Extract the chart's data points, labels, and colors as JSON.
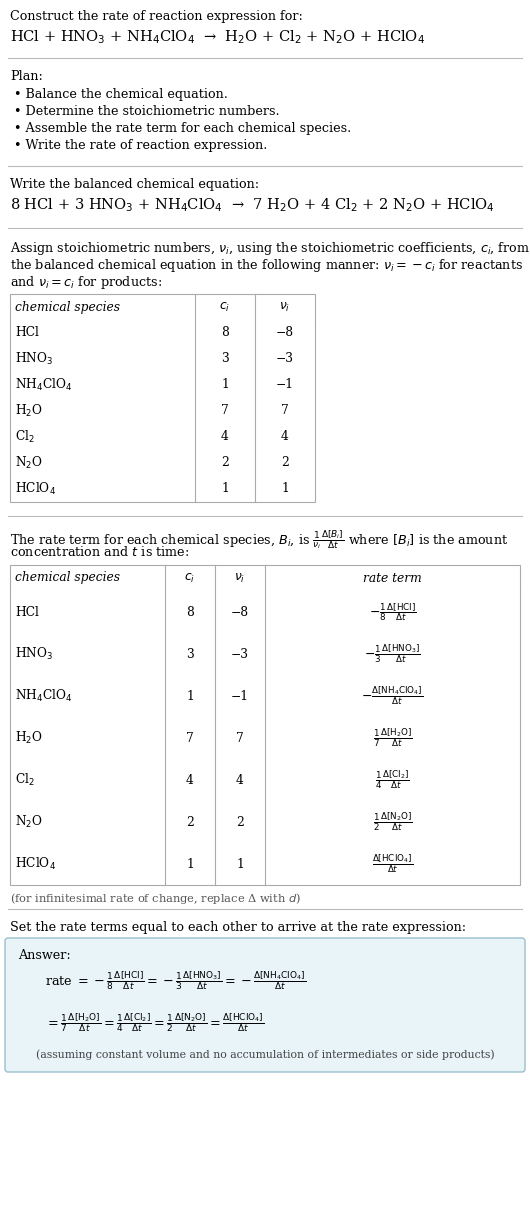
{
  "title_text": "Construct the rate of reaction expression for:",
  "reaction_unbalanced": "HCl + HNO$_3$ + NH$_4$ClO$_4$  →  H$_2$O + Cl$_2$ + N$_2$O + HClO$_4$",
  "plan_header": "Plan:",
  "plan_items": [
    "• Balance the chemical equation.",
    "• Determine the stoichiometric numbers.",
    "• Assemble the rate term for each chemical species.",
    "• Write the rate of reaction expression."
  ],
  "balanced_header": "Write the balanced chemical equation:",
  "reaction_balanced": "8 HCl + 3 HNO$_3$ + NH$_4$ClO$_4$  →  7 H$_2$O + 4 Cl$_2$ + 2 N$_2$O + HClO$_4$",
  "stoich_intro_1": "Assign stoichiometric numbers, $\\nu_i$, using the stoichiometric coefficients, $c_i$, from",
  "stoich_intro_2": "the balanced chemical equation in the following manner: $\\nu_i = -c_i$ for reactants",
  "stoich_intro_3": "and $\\nu_i = c_i$ for products:",
  "table1_headers": [
    "chemical species",
    "$c_i$",
    "$\\nu_i$"
  ],
  "table1_rows": [
    [
      "HCl",
      "8",
      "−8"
    ],
    [
      "HNO$_3$",
      "3",
      "−3"
    ],
    [
      "NH$_4$ClO$_4$",
      "1",
      "−1"
    ],
    [
      "H$_2$O",
      "7",
      "7"
    ],
    [
      "Cl$_2$",
      "4",
      "4"
    ],
    [
      "N$_2$O",
      "2",
      "2"
    ],
    [
      "HClO$_4$",
      "1",
      "1"
    ]
  ],
  "rate_intro_1": "The rate term for each chemical species, $B_i$, is $\\frac{1}{\\nu_i}\\frac{\\Delta[B_i]}{\\Delta t}$ where $[B_i]$ is the amount",
  "rate_intro_2": "concentration and $t$ is time:",
  "table2_headers": [
    "chemical species",
    "$c_i$",
    "$\\nu_i$",
    "rate term"
  ],
  "table2_rows": [
    [
      "HCl",
      "8",
      "−8",
      "$-\\frac{1}{8}\\frac{\\Delta[\\mathrm{HCl}]}{\\Delta t}$"
    ],
    [
      "HNO$_3$",
      "3",
      "−3",
      "$-\\frac{1}{3}\\frac{\\Delta[\\mathrm{HNO_3}]}{\\Delta t}$"
    ],
    [
      "NH$_4$ClO$_4$",
      "1",
      "−1",
      "$-\\frac{\\Delta[\\mathrm{NH_4ClO_4}]}{\\Delta t}$"
    ],
    [
      "H$_2$O",
      "7",
      "7",
      "$\\frac{1}{7}\\frac{\\Delta[\\mathrm{H_2O}]}{\\Delta t}$"
    ],
    [
      "Cl$_2$",
      "4",
      "4",
      "$\\frac{1}{4}\\frac{\\Delta[\\mathrm{Cl_2}]}{\\Delta t}$"
    ],
    [
      "N$_2$O",
      "2",
      "2",
      "$\\frac{1}{2}\\frac{\\Delta[\\mathrm{N_2O}]}{\\Delta t}$"
    ],
    [
      "HClO$_4$",
      "1",
      "1",
      "$\\frac{\\Delta[\\mathrm{HClO_4}]}{\\Delta t}$"
    ]
  ],
  "infinitesimal_note": "(for infinitesimal rate of change, replace Δ with $d$)",
  "set_equal_text": "Set the rate terms equal to each other to arrive at the rate expression:",
  "answer_label": "Answer:",
  "answer_line1": "rate $= -\\frac{1}{8}\\frac{\\Delta[\\mathrm{HCl}]}{\\Delta t} = -\\frac{1}{3}\\frac{\\Delta[\\mathrm{HNO_3}]}{\\Delta t} = -\\frac{\\Delta[\\mathrm{NH_4ClO_4}]}{\\Delta t}$",
  "answer_line2": "$= \\frac{1}{7}\\frac{\\Delta[\\mathrm{H_2O}]}{\\Delta t} = \\frac{1}{4}\\frac{\\Delta[\\mathrm{Cl_2}]}{\\Delta t} = \\frac{1}{2}\\frac{\\Delta[\\mathrm{N_2O}]}{\\Delta t} = \\frac{\\Delta[\\mathrm{HClO_4}]}{\\Delta t}$",
  "answer_note": "(assuming constant volume and no accumulation of intermediates or side products)",
  "bg_color": "#ffffff",
  "answer_box_color": "#e8f4f8",
  "answer_box_border": "#9bbfcc",
  "table_border_color": "#aaaaaa",
  "text_color": "#000000",
  "sep_line_color": "#bbbbbb"
}
